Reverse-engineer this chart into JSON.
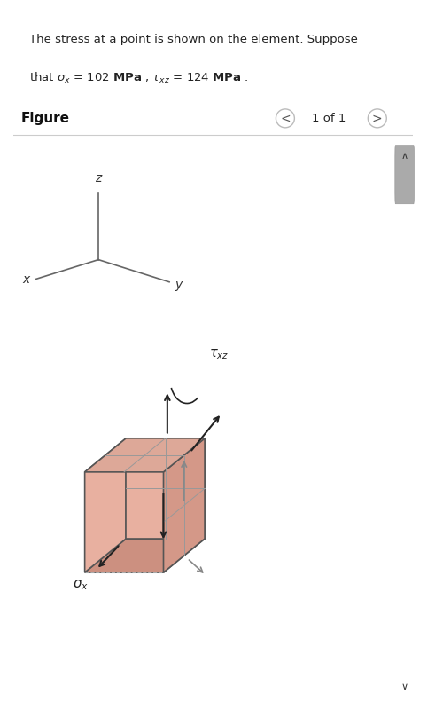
{
  "bg_color": "#ffffff",
  "header_bg": "#dff0f0",
  "header_border": "#b0d0d8",
  "box_face_light": "#e8b0a0",
  "box_face_right": "#d49888",
  "box_face_top": "#dda898",
  "box_edge_color": "#555555",
  "box_hidden_color": "#aaaaaa",
  "arrow_color": "#222222",
  "arrow_gray": "#888888",
  "axis_color": "#888888",
  "text_color": "#222222",
  "scrollbar_bg": "#d0d0d0",
  "scrollbar_thumb": "#aaaaaa",
  "figure_label": "Figure",
  "page_label": "1 of 1",
  "line1": "The stress at a point is shown on the element. Suppose",
  "line2_prefix": "that ",
  "line2_suffix": " = 102 ",
  "line2_mid": " = 124 ",
  "line2_end": " ."
}
